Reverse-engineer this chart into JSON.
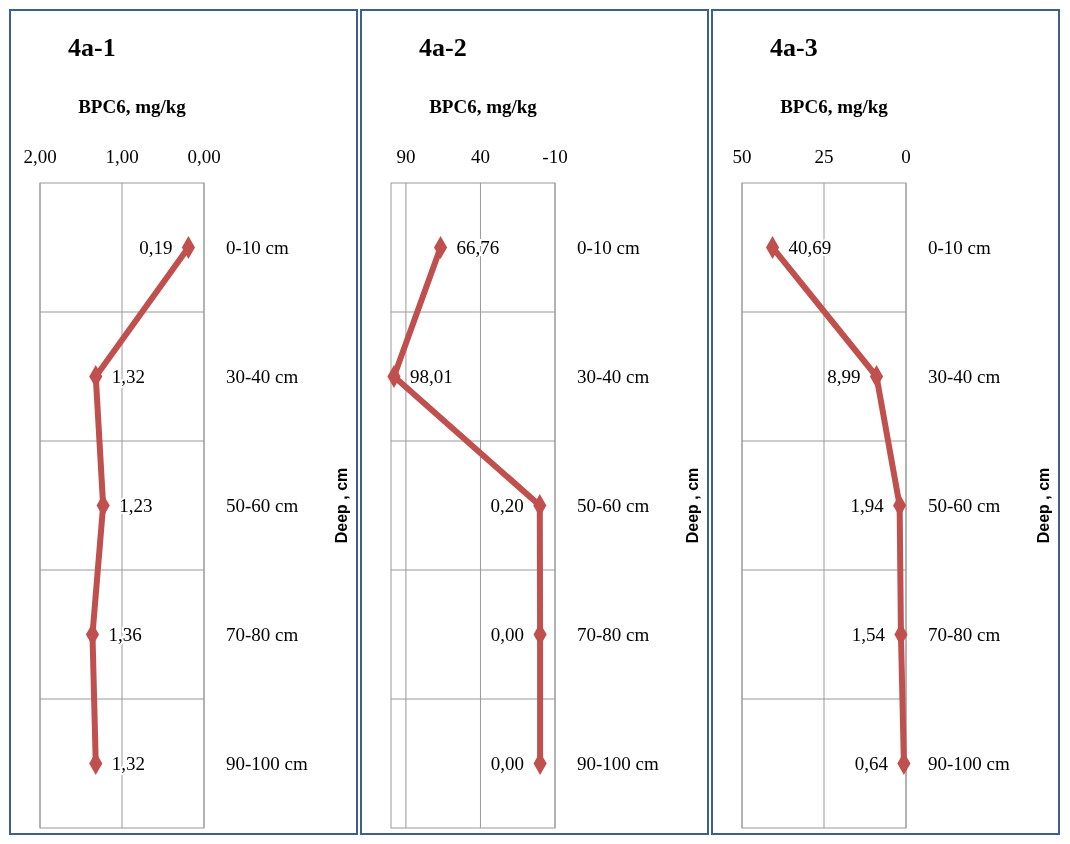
{
  "chart_data": [
    {
      "type": "line",
      "orientation": "horizontal",
      "title": "4a-1",
      "xlabel": "BPC6, mg/kg",
      "ylabel": "Deep , cm",
      "categories": [
        "0-10 cm",
        "30-40 cm",
        "50-60 cm",
        "70-80 cm",
        "90-100 cm"
      ],
      "series": [
        {
          "color": "#c0504d",
          "values": [
            0.19,
            1.32,
            1.23,
            1.36,
            1.32
          ],
          "value_labels": [
            "0,19",
            "1,32",
            "1,23",
            "1,36",
            "1,32"
          ]
        }
      ],
      "xlim": [
        2,
        0
      ],
      "xticks": [
        {
          "value": 2,
          "label": "2,00"
        },
        {
          "value": 1,
          "label": "1,00"
        },
        {
          "value": 0,
          "label": "0,00"
        }
      ],
      "grid": true,
      "marker": "diamond"
    },
    {
      "type": "line",
      "orientation": "horizontal",
      "title": "4a-2",
      "xlabel": "BPC6, mg/kg",
      "ylabel": "Deep , cm",
      "categories": [
        "0-10 cm",
        "30-40 cm",
        "50-60 cm",
        "70-80 cm",
        "90-100 cm"
      ],
      "series": [
        {
          "color": "#c0504d",
          "values": [
            66.76,
            98.01,
            0.2,
            0,
            0
          ],
          "value_labels": [
            "66,76",
            "98,01",
            "0,20",
            "0,00",
            "0,00"
          ]
        }
      ],
      "xlim": [
        100,
        -10
      ],
      "xticks": [
        90,
        40,
        -10
      ],
      "grid": true,
      "marker": "diamond"
    },
    {
      "type": "line",
      "orientation": "horizontal",
      "title": "4a-3",
      "xlabel": "BPC6, mg/kg",
      "ylabel": "Deep , cm",
      "categories": [
        "0-10 cm",
        "30-40 cm",
        "50-60 cm",
        "70-80 cm",
        "90-100 cm"
      ],
      "series": [
        {
          "color": "#c0504d",
          "values": [
            40.69,
            8.99,
            1.94,
            1.54,
            0.64
          ],
          "value_labels": [
            "40,69",
            "8,99",
            "1,94",
            "1,54",
            "0,64"
          ]
        }
      ],
      "xlim": [
        50,
        0
      ],
      "xticks": [
        50,
        25,
        0
      ],
      "grid": true,
      "marker": "diamond"
    }
  ]
}
